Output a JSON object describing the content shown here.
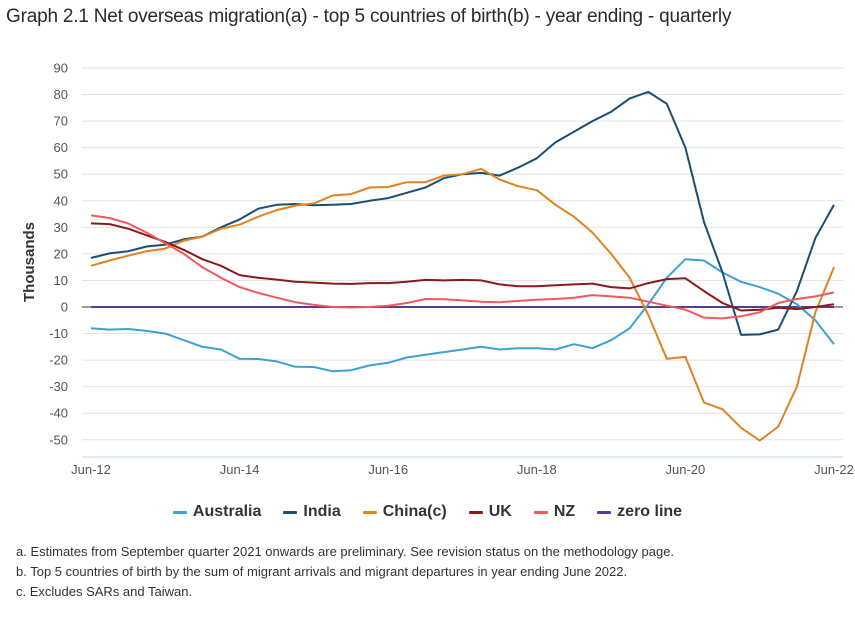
{
  "chart_data": {
    "type": "line",
    "title": "Graph 2.1 Net overseas migration(a) - top 5 countries of birth(b) - year ending - quarterly",
    "xlabel": "",
    "ylabel": "Thousands",
    "ylim": [
      -55,
      90
    ],
    "yticks": [
      90,
      80,
      70,
      60,
      50,
      40,
      30,
      20,
      10,
      0,
      -10,
      -20,
      -30,
      -40,
      -50
    ],
    "x": [
      "Jun-12",
      "Sep-12",
      "Dec-12",
      "Mar-13",
      "Jun-13",
      "Sep-13",
      "Dec-13",
      "Mar-14",
      "Jun-14",
      "Sep-14",
      "Dec-14",
      "Mar-15",
      "Jun-15",
      "Sep-15",
      "Dec-15",
      "Mar-16",
      "Jun-16",
      "Sep-16",
      "Dec-16",
      "Mar-17",
      "Jun-17",
      "Sep-17",
      "Dec-17",
      "Mar-18",
      "Jun-18",
      "Sep-18",
      "Dec-18",
      "Mar-19",
      "Jun-19",
      "Sep-19",
      "Dec-19",
      "Mar-20",
      "Jun-20",
      "Sep-20",
      "Dec-20",
      "Mar-21",
      "Jun-21",
      "Sep-21",
      "Dec-21",
      "Mar-22",
      "Jun-22"
    ],
    "xtick_labels": [
      "Jun-12",
      "Jun-14",
      "Jun-16",
      "Jun-18",
      "Jun-20",
      "Jun-22"
    ],
    "grid": true,
    "legend_position": "bottom",
    "series": [
      {
        "name": "Australia",
        "color": "#3fa0d4",
        "values": [
          -8,
          -8.5,
          -8.3,
          -9,
          -10,
          -12.5,
          -15,
          -16,
          -19.5,
          -19.6,
          -20.5,
          -22.5,
          -22.6,
          -24.2,
          -23.8,
          -22,
          -21,
          -19,
          -18,
          -17,
          -16,
          -15,
          -16,
          -15.5,
          -15.5,
          -16,
          -14,
          -15.5,
          -12.5,
          -8,
          1,
          11,
          18,
          17.5,
          13,
          9.5,
          7.5,
          5,
          1,
          -5,
          -14
        ]
      },
      {
        "name": "India",
        "color": "#194e76",
        "values": [
          18.5,
          20.2,
          21,
          22.8,
          23.5,
          25.5,
          26.5,
          30,
          33,
          37,
          38.5,
          38.8,
          38.3,
          38.5,
          38.8,
          40,
          41,
          43,
          45,
          48.5,
          50,
          50.5,
          49.5,
          52.5,
          56,
          62,
          66,
          70,
          73.5,
          78.5,
          81,
          76.5,
          60,
          32,
          13,
          -10.5,
          -10.3,
          -8.5,
          6,
          26,
          38.5
        ]
      },
      {
        "name": "China(c)",
        "color": "#e0821e",
        "values": [
          15.5,
          17.5,
          19.3,
          21,
          22,
          25,
          26.5,
          29.5,
          31,
          34,
          36.5,
          38.2,
          39,
          42,
          42.5,
          45,
          45.2,
          47,
          47,
          49.5,
          50,
          52,
          48,
          45.5,
          44,
          38.5,
          34,
          28,
          20,
          11,
          -3,
          -19.5,
          -18.8,
          -36,
          -38.5,
          -45.5,
          -50.3,
          -45,
          -30,
          -2,
          15
        ]
      },
      {
        "name": "UK",
        "color": "#8b1a1a",
        "values": [
          31.5,
          31.2,
          29.5,
          27,
          24.5,
          21.5,
          18,
          15.5,
          12,
          11,
          10.3,
          9.5,
          9.2,
          8.8,
          8.7,
          9,
          9,
          9.5,
          10.2,
          10,
          10.2,
          10,
          8.5,
          7.8,
          7.8,
          8.2,
          8.5,
          8.8,
          7.5,
          7,
          9,
          10.5,
          10.8,
          6,
          1.5,
          -1.3,
          -1,
          -0.3,
          -0.8,
          0,
          1
        ]
      },
      {
        "name": "NZ",
        "color": "#f05a5b",
        "values": [
          34.5,
          33.5,
          31.5,
          28,
          24,
          20,
          15,
          11,
          7.5,
          5.3,
          3.5,
          1.8,
          0.8,
          0,
          -0.2,
          0,
          0.5,
          1.5,
          3,
          2.9,
          2.5,
          2,
          1.8,
          2.3,
          2.7,
          3,
          3.5,
          4.5,
          4,
          3.5,
          2,
          0.5,
          -1,
          -4,
          -4.3,
          -3.5,
          -2,
          1.5,
          3,
          4,
          5.5
        ]
      },
      {
        "name": "zero line",
        "color": "#5a3c8c",
        "values": [
          0,
          0,
          0,
          0,
          0,
          0,
          0,
          0,
          0,
          0,
          0,
          0,
          0,
          0,
          0,
          0,
          0,
          0,
          0,
          0,
          0,
          0,
          0,
          0,
          0,
          0,
          0,
          0,
          0,
          0,
          0,
          0,
          0,
          0,
          0,
          0,
          0,
          0,
          0,
          0,
          0
        ]
      }
    ]
  },
  "notes": [
    "a. Estimates from September quarter 2021 onwards are preliminary. See revision status on the methodology page.",
    "b. Top 5 countries of birth by the sum of migrant arrivals and migrant departures in year ending June 2022.",
    "c. Excludes SARs and Taiwan."
  ],
  "colors": {
    "grid": "#e4e4e4",
    "axis": "#c8d4e3",
    "zero_axis": "#999999"
  }
}
